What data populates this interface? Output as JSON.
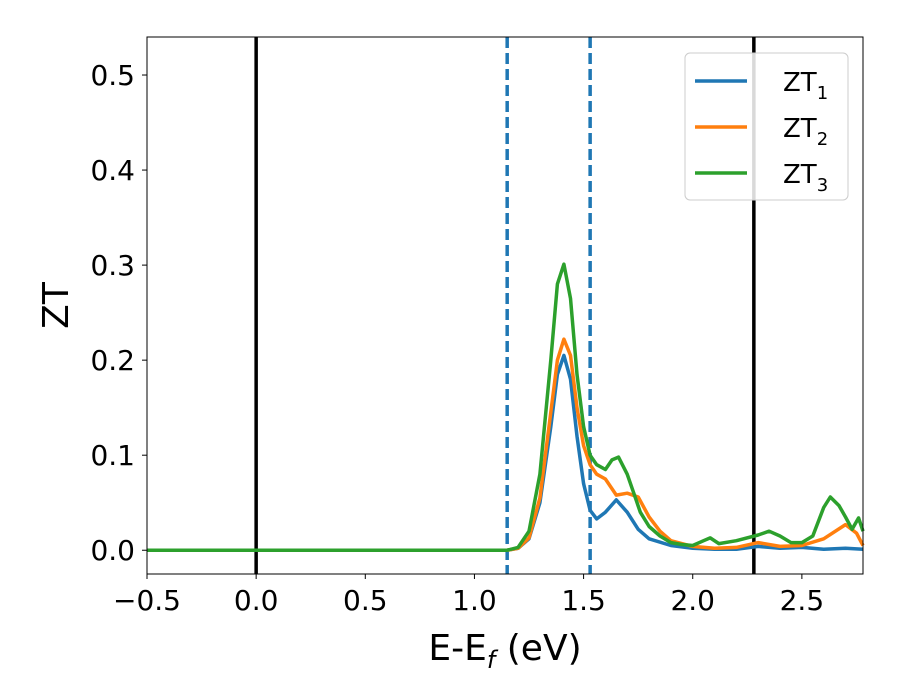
{
  "chart_data": {
    "type": "line",
    "title": "",
    "xlabel": {
      "base": "E-E",
      "sub": "f",
      "tail": " (eV)"
    },
    "ylabel": "ZT",
    "xlim": [
      -0.5,
      2.78
    ],
    "ylim": [
      -0.025,
      0.54
    ],
    "x_ticks": [
      -0.5,
      0.0,
      0.5,
      1.0,
      1.5,
      2.0,
      2.5
    ],
    "x_tick_labels": [
      "−0.5",
      "0.0",
      "0.5",
      "1.0",
      "1.5",
      "2.0",
      "2.5"
    ],
    "y_ticks": [
      0.0,
      0.1,
      0.2,
      0.3,
      0.4,
      0.5
    ],
    "y_tick_labels": [
      "0.0",
      "0.1",
      "0.2",
      "0.3",
      "0.4",
      "0.5"
    ],
    "grid": false,
    "legend_position": "top-right",
    "vertical_lines": [
      {
        "x": 0.0,
        "style": "solid",
        "color": "#000000"
      },
      {
        "x": 2.28,
        "style": "solid",
        "color": "#000000"
      },
      {
        "x": 1.15,
        "style": "dashed",
        "color": "#1f77b4"
      },
      {
        "x": 1.53,
        "style": "dashed",
        "color": "#1f77b4"
      }
    ],
    "series": [
      {
        "name": "ZT",
        "sub": "1",
        "color": "#1f77b4",
        "points": [
          [
            -0.5,
            0
          ],
          [
            1.15,
            0
          ],
          [
            1.2,
            0.002
          ],
          [
            1.25,
            0.012
          ],
          [
            1.3,
            0.05
          ],
          [
            1.35,
            0.13
          ],
          [
            1.38,
            0.185
          ],
          [
            1.41,
            0.205
          ],
          [
            1.44,
            0.18
          ],
          [
            1.47,
            0.12
          ],
          [
            1.5,
            0.07
          ],
          [
            1.53,
            0.042
          ],
          [
            1.56,
            0.033
          ],
          [
            1.6,
            0.04
          ],
          [
            1.65,
            0.053
          ],
          [
            1.7,
            0.04
          ],
          [
            1.75,
            0.022
          ],
          [
            1.8,
            0.012
          ],
          [
            1.9,
            0.005
          ],
          [
            2.0,
            0.002
          ],
          [
            2.1,
            0.001
          ],
          [
            2.2,
            0.001
          ],
          [
            2.3,
            0.004
          ],
          [
            2.4,
            0.002
          ],
          [
            2.5,
            0.003
          ],
          [
            2.6,
            0.001
          ],
          [
            2.7,
            0.002
          ],
          [
            2.78,
            0.001
          ]
        ]
      },
      {
        "name": "ZT",
        "sub": "2",
        "color": "#ff7f0e",
        "points": [
          [
            -0.5,
            0
          ],
          [
            1.15,
            0
          ],
          [
            1.2,
            0.002
          ],
          [
            1.25,
            0.013
          ],
          [
            1.3,
            0.055
          ],
          [
            1.35,
            0.145
          ],
          [
            1.38,
            0.2
          ],
          [
            1.41,
            0.222
          ],
          [
            1.44,
            0.205
          ],
          [
            1.47,
            0.15
          ],
          [
            1.5,
            0.11
          ],
          [
            1.53,
            0.09
          ],
          [
            1.56,
            0.08
          ],
          [
            1.6,
            0.075
          ],
          [
            1.65,
            0.058
          ],
          [
            1.7,
            0.06
          ],
          [
            1.75,
            0.056
          ],
          [
            1.8,
            0.035
          ],
          [
            1.85,
            0.02
          ],
          [
            1.9,
            0.01
          ],
          [
            2.0,
            0.004
          ],
          [
            2.1,
            0.002
          ],
          [
            2.2,
            0.003
          ],
          [
            2.3,
            0.008
          ],
          [
            2.4,
            0.004
          ],
          [
            2.5,
            0.005
          ],
          [
            2.6,
            0.012
          ],
          [
            2.7,
            0.027
          ],
          [
            2.75,
            0.018
          ],
          [
            2.78,
            0.005
          ]
        ]
      },
      {
        "name": "ZT",
        "sub": "3",
        "color": "#2ca02c",
        "points": [
          [
            -0.5,
            0
          ],
          [
            1.15,
            0
          ],
          [
            1.2,
            0.003
          ],
          [
            1.25,
            0.02
          ],
          [
            1.3,
            0.08
          ],
          [
            1.35,
            0.2
          ],
          [
            1.38,
            0.28
          ],
          [
            1.41,
            0.301
          ],
          [
            1.44,
            0.265
          ],
          [
            1.47,
            0.185
          ],
          [
            1.5,
            0.13
          ],
          [
            1.53,
            0.1
          ],
          [
            1.56,
            0.09
          ],
          [
            1.6,
            0.085
          ],
          [
            1.63,
            0.095
          ],
          [
            1.66,
            0.098
          ],
          [
            1.7,
            0.08
          ],
          [
            1.73,
            0.06
          ],
          [
            1.76,
            0.04
          ],
          [
            1.8,
            0.025
          ],
          [
            1.85,
            0.015
          ],
          [
            1.9,
            0.008
          ],
          [
            1.95,
            0.006
          ],
          [
            2.0,
            0.005
          ],
          [
            2.05,
            0.01
          ],
          [
            2.08,
            0.013
          ],
          [
            2.12,
            0.007
          ],
          [
            2.2,
            0.01
          ],
          [
            2.3,
            0.016
          ],
          [
            2.35,
            0.02
          ],
          [
            2.4,
            0.015
          ],
          [
            2.45,
            0.008
          ],
          [
            2.5,
            0.008
          ],
          [
            2.55,
            0.015
          ],
          [
            2.6,
            0.045
          ],
          [
            2.63,
            0.056
          ],
          [
            2.67,
            0.047
          ],
          [
            2.7,
            0.035
          ],
          [
            2.73,
            0.022
          ],
          [
            2.76,
            0.034
          ],
          [
            2.78,
            0.02
          ]
        ]
      }
    ]
  }
}
